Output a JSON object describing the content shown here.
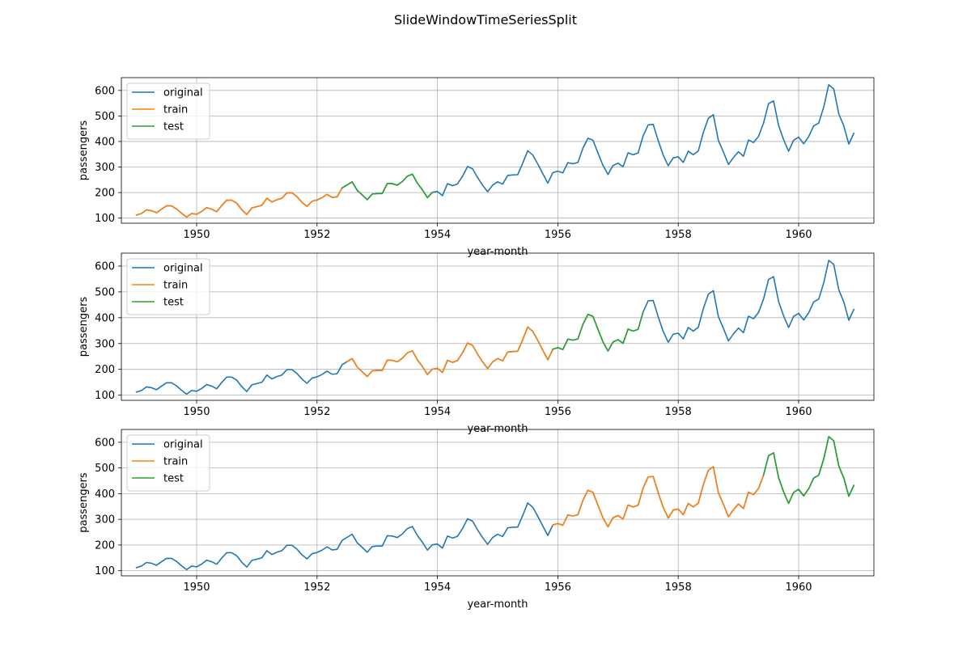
{
  "chart_data": {
    "type": "line",
    "title": "SlideWindowTimeSeriesSplit",
    "xlabel": "year-month",
    "ylabel": "passengers",
    "x_range": [
      "1948-10",
      "1961-04"
    ],
    "ylim": [
      80,
      650
    ],
    "x_ticks": [
      "1950",
      "1952",
      "1954",
      "1956",
      "1958",
      "1960"
    ],
    "y_ticks": [
      100,
      200,
      300,
      400,
      500,
      600
    ],
    "grid": true,
    "legend_position": "upper-left",
    "legend": [
      "original",
      "train",
      "test"
    ],
    "colors": {
      "original": "#1f77b4",
      "train": "#ff7f0e",
      "test": "#2ca02c"
    },
    "x": [
      "1949-01",
      "1949-02",
      "1949-03",
      "1949-04",
      "1949-05",
      "1949-06",
      "1949-07",
      "1949-08",
      "1949-09",
      "1949-10",
      "1949-11",
      "1949-12",
      "1950-01",
      "1950-02",
      "1950-03",
      "1950-04",
      "1950-05",
      "1950-06",
      "1950-07",
      "1950-08",
      "1950-09",
      "1950-10",
      "1950-11",
      "1950-12",
      "1951-01",
      "1951-02",
      "1951-03",
      "1951-04",
      "1951-05",
      "1951-06",
      "1951-07",
      "1951-08",
      "1951-09",
      "1951-10",
      "1951-11",
      "1951-12",
      "1952-01",
      "1952-02",
      "1952-03",
      "1952-04",
      "1952-05",
      "1952-06",
      "1952-07",
      "1952-08",
      "1952-09",
      "1952-10",
      "1952-11",
      "1952-12",
      "1953-01",
      "1953-02",
      "1953-03",
      "1953-04",
      "1953-05",
      "1953-06",
      "1953-07",
      "1953-08",
      "1953-09",
      "1953-10",
      "1953-11",
      "1953-12",
      "1954-01",
      "1954-02",
      "1954-03",
      "1954-04",
      "1954-05",
      "1954-06",
      "1954-07",
      "1954-08",
      "1954-09",
      "1954-10",
      "1954-11",
      "1954-12",
      "1955-01",
      "1955-02",
      "1955-03",
      "1955-04",
      "1955-05",
      "1955-06",
      "1955-07",
      "1955-08",
      "1955-09",
      "1955-10",
      "1955-11",
      "1955-12",
      "1956-01",
      "1956-02",
      "1956-03",
      "1956-04",
      "1956-05",
      "1956-06",
      "1956-07",
      "1956-08",
      "1956-09",
      "1956-10",
      "1956-11",
      "1956-12",
      "1957-01",
      "1957-02",
      "1957-03",
      "1957-04",
      "1957-05",
      "1957-06",
      "1957-07",
      "1957-08",
      "1957-09",
      "1957-10",
      "1957-11",
      "1957-12",
      "1958-01",
      "1958-02",
      "1958-03",
      "1958-04",
      "1958-05",
      "1958-06",
      "1958-07",
      "1958-08",
      "1958-09",
      "1958-10",
      "1958-11",
      "1958-12",
      "1959-01",
      "1959-02",
      "1959-03",
      "1959-04",
      "1959-05",
      "1959-06",
      "1959-07",
      "1959-08",
      "1959-09",
      "1959-10",
      "1959-11",
      "1959-12",
      "1960-01",
      "1960-02",
      "1960-03",
      "1960-04",
      "1960-05",
      "1960-06",
      "1960-07",
      "1960-08",
      "1960-09",
      "1960-10",
      "1960-11",
      "1960-12"
    ],
    "original": [
      112,
      118,
      132,
      129,
      121,
      135,
      148,
      148,
      136,
      119,
      104,
      118,
      115,
      126,
      141,
      135,
      125,
      149,
      170,
      170,
      158,
      133,
      114,
      140,
      145,
      150,
      178,
      163,
      172,
      178,
      199,
      199,
      184,
      162,
      146,
      166,
      171,
      180,
      193,
      181,
      183,
      218,
      230,
      242,
      209,
      191,
      172,
      194,
      196,
      196,
      236,
      235,
      229,
      243,
      264,
      272,
      237,
      211,
      180,
      201,
      204,
      188,
      235,
      227,
      234,
      264,
      302,
      293,
      259,
      229,
      203,
      229,
      242,
      233,
      267,
      269,
      270,
      315,
      364,
      347,
      312,
      274,
      237,
      278,
      284,
      277,
      317,
      313,
      318,
      374,
      413,
      405,
      355,
      306,
      271,
      306,
      315,
      301,
      356,
      348,
      355,
      422,
      465,
      467,
      404,
      347,
      305,
      336,
      340,
      318,
      362,
      348,
      363,
      435,
      491,
      505,
      404,
      359,
      310,
      337,
      360,
      342,
      406,
      396,
      420,
      472,
      548,
      559,
      463,
      407,
      362,
      405,
      417,
      391,
      419,
      461,
      472,
      535,
      622,
      606,
      508,
      461,
      390,
      432
    ],
    "folds": [
      {
        "train": [
          "1949-01",
          "1952-06"
        ],
        "test": [
          "1952-06",
          "1953-12"
        ]
      },
      {
        "train": [
          "1952-07",
          "1955-12"
        ],
        "test": [
          "1955-12",
          "1957-06"
        ]
      },
      {
        "train": [
          "1955-12",
          "1959-06"
        ],
        "test": [
          "1959-06",
          "1960-12"
        ]
      }
    ]
  }
}
